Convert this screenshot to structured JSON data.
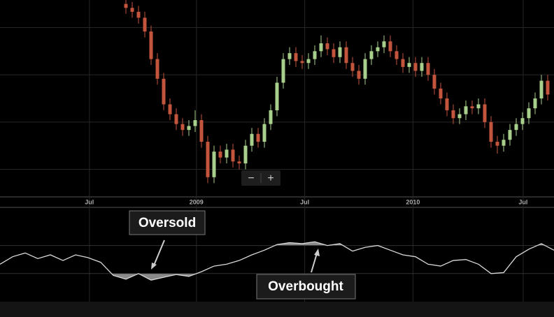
{
  "chart_data": [
    {
      "type": "candlestick",
      "x": [
        20,
        21,
        22,
        23,
        24,
        25,
        26,
        27,
        28,
        29,
        30,
        31,
        32,
        33,
        34,
        35,
        36,
        37,
        38,
        39,
        40,
        41,
        42,
        43,
        44,
        45,
        46,
        47,
        48,
        49,
        50,
        51,
        52,
        53,
        54,
        55,
        56,
        57,
        58,
        59,
        60,
        61,
        62,
        63,
        64,
        65,
        66,
        67,
        68,
        69,
        70,
        71,
        72,
        73,
        74,
        75,
        76,
        77,
        78,
        79,
        80,
        81,
        82,
        83,
        84,
        85,
        86,
        87
      ],
      "open": [
        108,
        106,
        104,
        101,
        94,
        80,
        70,
        57,
        52,
        47,
        44,
        46,
        49,
        38,
        20,
        33,
        30,
        34,
        28,
        27,
        36,
        42,
        38,
        47,
        54,
        68,
        80,
        83,
        79,
        78,
        80,
        84,
        88,
        85,
        81,
        86,
        78,
        74,
        70,
        80,
        84,
        86,
        89,
        84,
        80,
        76,
        78,
        74,
        78,
        72,
        65,
        60,
        54,
        50,
        52,
        56,
        55,
        57,
        48,
        38,
        36,
        39,
        44,
        47,
        50,
        55,
        60,
        69
      ],
      "high": [
        111,
        109,
        107,
        104,
        97,
        83,
        73,
        60,
        55,
        50,
        49,
        54,
        52,
        41,
        36,
        36,
        37,
        37,
        31,
        39,
        45,
        45,
        50,
        57,
        71,
        83,
        86,
        86,
        82,
        83,
        87,
        92,
        91,
        88,
        89,
        89,
        81,
        77,
        83,
        87,
        89,
        92,
        92,
        87,
        83,
        81,
        81,
        81,
        81,
        75,
        68,
        63,
        57,
        55,
        59,
        59,
        60,
        60,
        51,
        41,
        42,
        47,
        50,
        53,
        58,
        63,
        72,
        72
      ],
      "low": [
        103,
        101,
        98,
        91,
        77,
        67,
        54,
        49,
        44,
        41,
        41,
        43,
        35,
        17,
        17,
        27,
        27,
        25,
        24,
        24,
        33,
        35,
        35,
        44,
        51,
        65,
        77,
        76,
        75,
        75,
        77,
        81,
        82,
        78,
        78,
        75,
        71,
        67,
        67,
        77,
        81,
        83,
        81,
        77,
        73,
        73,
        71,
        71,
        69,
        62,
        57,
        51,
        47,
        47,
        49,
        52,
        52,
        45,
        35,
        32,
        33,
        36,
        41,
        44,
        47,
        52,
        57,
        59
      ],
      "close": [
        106,
        104,
        101,
        94,
        80,
        70,
        57,
        52,
        47,
        44,
        46,
        49,
        38,
        20,
        33,
        30,
        34,
        28,
        27,
        36,
        42,
        38,
        47,
        54,
        68,
        80,
        83,
        79,
        78,
        80,
        84,
        88,
        85,
        81,
        86,
        78,
        74,
        70,
        80,
        84,
        86,
        89,
        84,
        80,
        76,
        78,
        74,
        78,
        72,
        65,
        60,
        54,
        50,
        52,
        56,
        55,
        57,
        48,
        38,
        36,
        39,
        44,
        47,
        50,
        55,
        60,
        69,
        62
      ],
      "up_color": "#a9cf8c",
      "down_color": "#c4553d",
      "xlim": [
        0,
        88
      ],
      "xticks": [
        {
          "value": 14.2,
          "label": "Jul"
        },
        {
          "value": 31.2,
          "label": "2009"
        },
        {
          "value": 48.4,
          "label": "Jul"
        },
        {
          "value": 65.6,
          "label": "2010"
        },
        {
          "value": 83.1,
          "label": "Jul"
        }
      ],
      "ylim": [
        10,
        110
      ],
      "yticks": [
        24,
        48,
        72,
        96
      ],
      "grid": true
    },
    {
      "type": "line",
      "x": [
        0,
        2,
        4,
        6,
        8,
        10,
        12,
        14,
        16,
        18,
        20,
        22,
        24,
        26,
        28,
        30,
        32,
        34,
        36,
        38,
        40,
        42,
        44,
        46,
        48,
        50,
        52,
        54,
        56,
        58,
        60,
        62,
        64,
        66,
        68,
        70,
        72,
        74,
        76,
        78,
        80,
        82,
        84,
        86,
        88
      ],
      "values": [
        40,
        48,
        52,
        46,
        50,
        44,
        50,
        47,
        42,
        28,
        24,
        30,
        23,
        26,
        29,
        27,
        32,
        38,
        40,
        44,
        50,
        55,
        61,
        63,
        62,
        64,
        60,
        62,
        54,
        58,
        60,
        55,
        50,
        48,
        40,
        38,
        44,
        45,
        40,
        30,
        31,
        48,
        56,
        62,
        55
      ],
      "color": "#d9d9d9",
      "shade_color": "#8a8a8a",
      "xlim": [
        0,
        88
      ],
      "ylim": [
        0,
        100
      ],
      "levels": [
        60,
        30
      ],
      "annotations": [
        "Oversold",
        "Overbought"
      ]
    }
  ],
  "controls": [
    "−",
    "+"
  ]
}
